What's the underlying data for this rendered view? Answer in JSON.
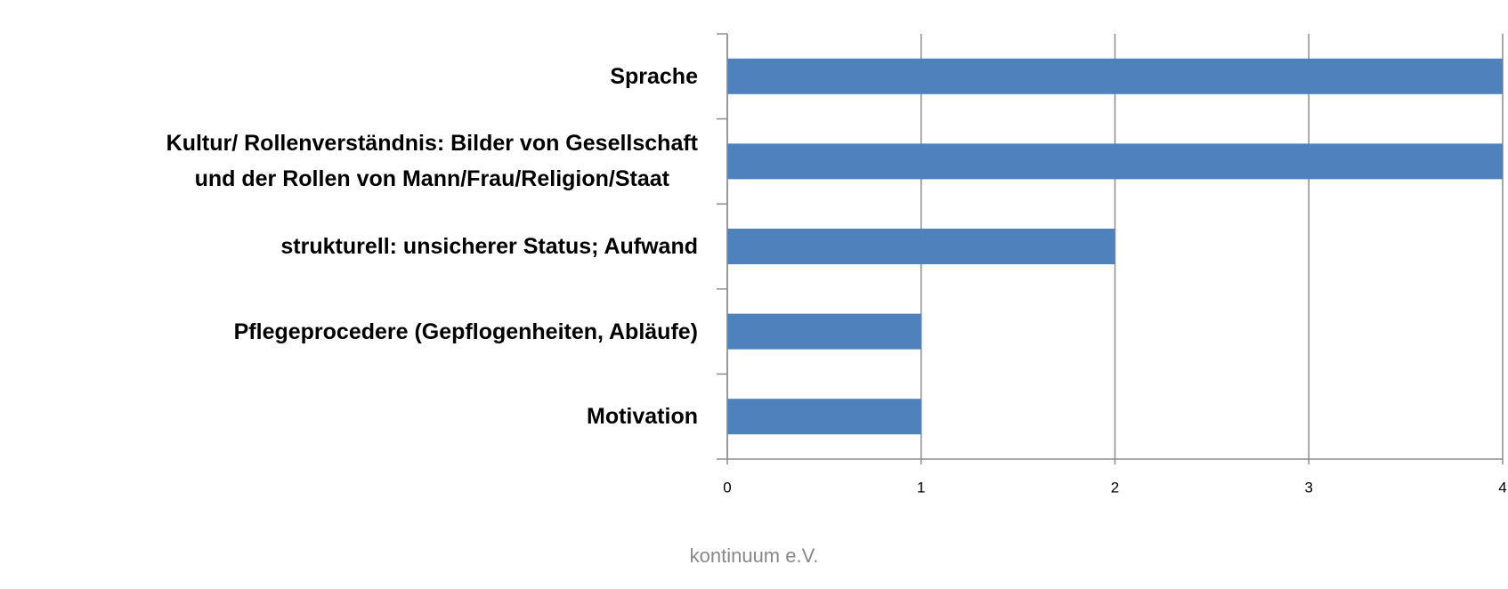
{
  "chart_data": {
    "type": "barh",
    "categories": [
      "Sprache",
      "Kultur/ Rollenverständnis: Bilder von Gesellschaft\nund der Rollen von Mann/Frau/Religion/Staat",
      "strukturell: unsicherer Status; Aufwand",
      "Pflegeprocedere (Gepflogenheiten, Abläufe)",
      "Motivation"
    ],
    "values": [
      4,
      4,
      2,
      1,
      1
    ],
    "color": "#4f81bd",
    "xlim": [
      0,
      4
    ],
    "xticks": [
      0,
      1,
      2,
      3,
      4
    ],
    "grid": true,
    "annotation": "kontinuum e.V."
  }
}
